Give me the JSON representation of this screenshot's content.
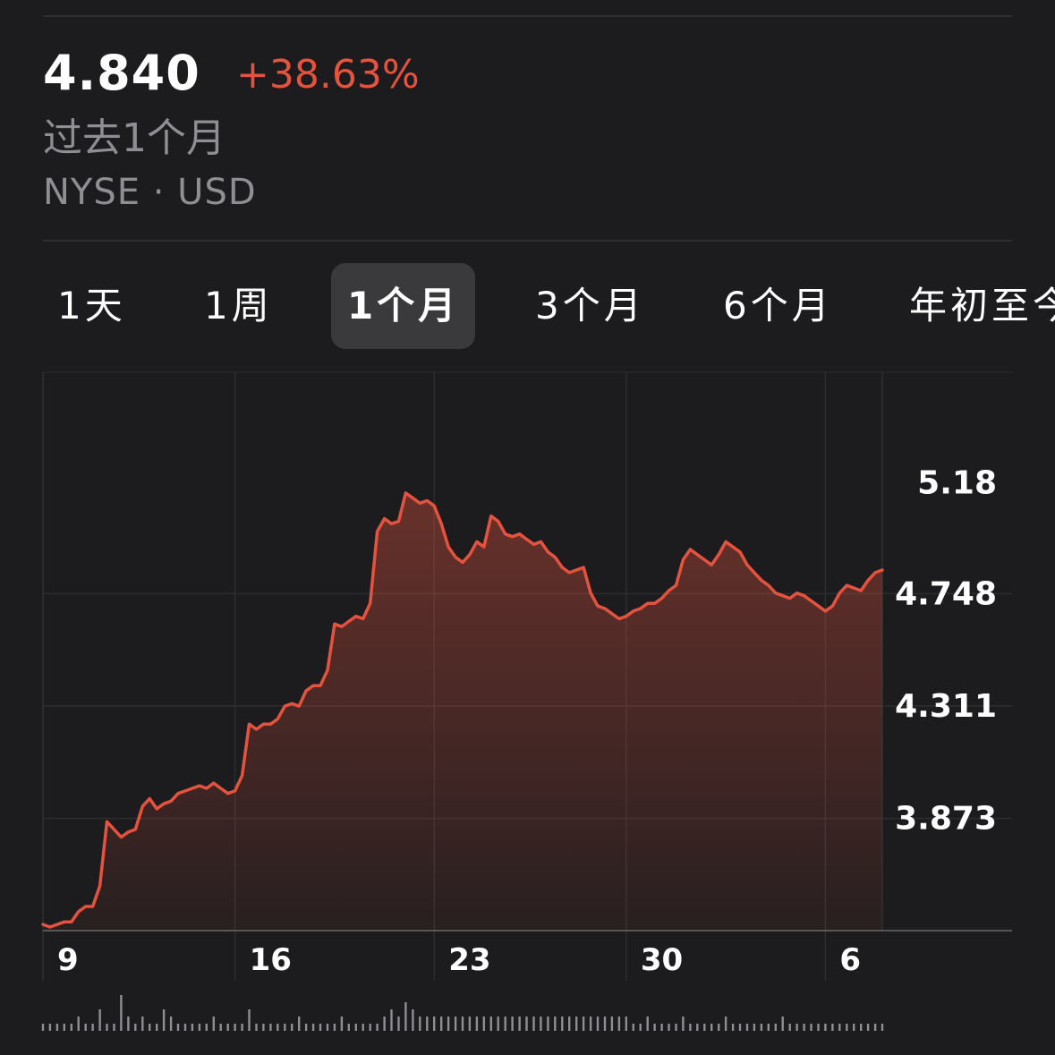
{
  "quote": {
    "price": "4.840",
    "change_percent": "+38.63%",
    "period_label": "过去1个月",
    "exchange": "NYSE · USD",
    "change_color": "#e5533f"
  },
  "range_tabs": [
    {
      "label": "1天",
      "active": false
    },
    {
      "label": "1周",
      "active": false
    },
    {
      "label": "1个月",
      "active": true
    },
    {
      "label": "3个月",
      "active": false
    },
    {
      "label": "6个月",
      "active": false
    },
    {
      "label": "年初至今",
      "active": false
    }
  ],
  "chart_data": {
    "type": "area",
    "title": "",
    "xlabel": "",
    "ylabel": "",
    "x_ticks": [
      "9",
      "16",
      "23",
      "30",
      "6"
    ],
    "y_ticks": [
      5.18,
      4.748,
      4.311,
      3.873
    ],
    "y_axis_position": "right",
    "grid": true,
    "line_color": "#e5533f",
    "ylim": [
      3.436,
      5.61
    ],
    "series": [
      {
        "values": [
          3.46,
          3.45,
          3.46,
          3.47,
          3.47,
          3.51,
          3.53,
          3.53,
          3.61,
          3.86,
          3.83,
          3.8,
          3.82,
          3.83,
          3.92,
          3.95,
          3.91,
          3.93,
          3.94,
          3.97,
          3.98,
          3.99,
          4.0,
          3.99,
          4.01,
          3.99,
          3.97,
          3.98,
          4.04,
          4.24,
          4.22,
          4.24,
          4.24,
          4.26,
          4.31,
          4.32,
          4.31,
          4.37,
          4.39,
          4.39,
          4.45,
          4.63,
          4.62,
          4.64,
          4.66,
          4.65,
          4.71,
          4.99,
          5.04,
          5.02,
          5.03,
          5.14,
          5.12,
          5.1,
          5.11,
          5.09,
          5.02,
          4.93,
          4.89,
          4.87,
          4.9,
          4.95,
          4.93,
          5.05,
          5.03,
          4.98,
          4.97,
          4.98,
          4.96,
          4.94,
          4.95,
          4.91,
          4.89,
          4.85,
          4.83,
          4.84,
          4.85,
          4.75,
          4.7,
          4.69,
          4.67,
          4.65,
          4.66,
          4.68,
          4.69,
          4.71,
          4.71,
          4.73,
          4.76,
          4.78,
          4.88,
          4.92,
          4.9,
          4.88,
          4.86,
          4.9,
          4.95,
          4.93,
          4.91,
          4.86,
          4.83,
          4.8,
          4.78,
          4.75,
          4.74,
          4.73,
          4.75,
          4.74,
          4.72,
          4.7,
          4.68,
          4.7,
          4.75,
          4.78,
          4.77,
          4.76,
          4.8,
          4.83,
          4.84
        ]
      }
    ],
    "volume": [
      1,
      1,
      1,
      1,
      1,
      2,
      1,
      1,
      3,
      1,
      1,
      5,
      2,
      1,
      2,
      1,
      1,
      3,
      2,
      1,
      1,
      1,
      1,
      1,
      2,
      1,
      1,
      1,
      1,
      3,
      1,
      1,
      1,
      1,
      1,
      1,
      2,
      1,
      1,
      1,
      1,
      1,
      2,
      1,
      1,
      1,
      1,
      1,
      2,
      3,
      2,
      4,
      3,
      2,
      2,
      2,
      2,
      2,
      2,
      2,
      2,
      2,
      2,
      2,
      2,
      2,
      2,
      2,
      2,
      2,
      2,
      2,
      2,
      2,
      2,
      2,
      2,
      2,
      2,
      2,
      2,
      2,
      2,
      1,
      1,
      2,
      1,
      1,
      1,
      1,
      2,
      1,
      1,
      1,
      1,
      1,
      2,
      1,
      1,
      1,
      1,
      1,
      1,
      1,
      2,
      1,
      1,
      1,
      1,
      1,
      1,
      1,
      1,
      1,
      1,
      1,
      1,
      1,
      1
    ]
  }
}
